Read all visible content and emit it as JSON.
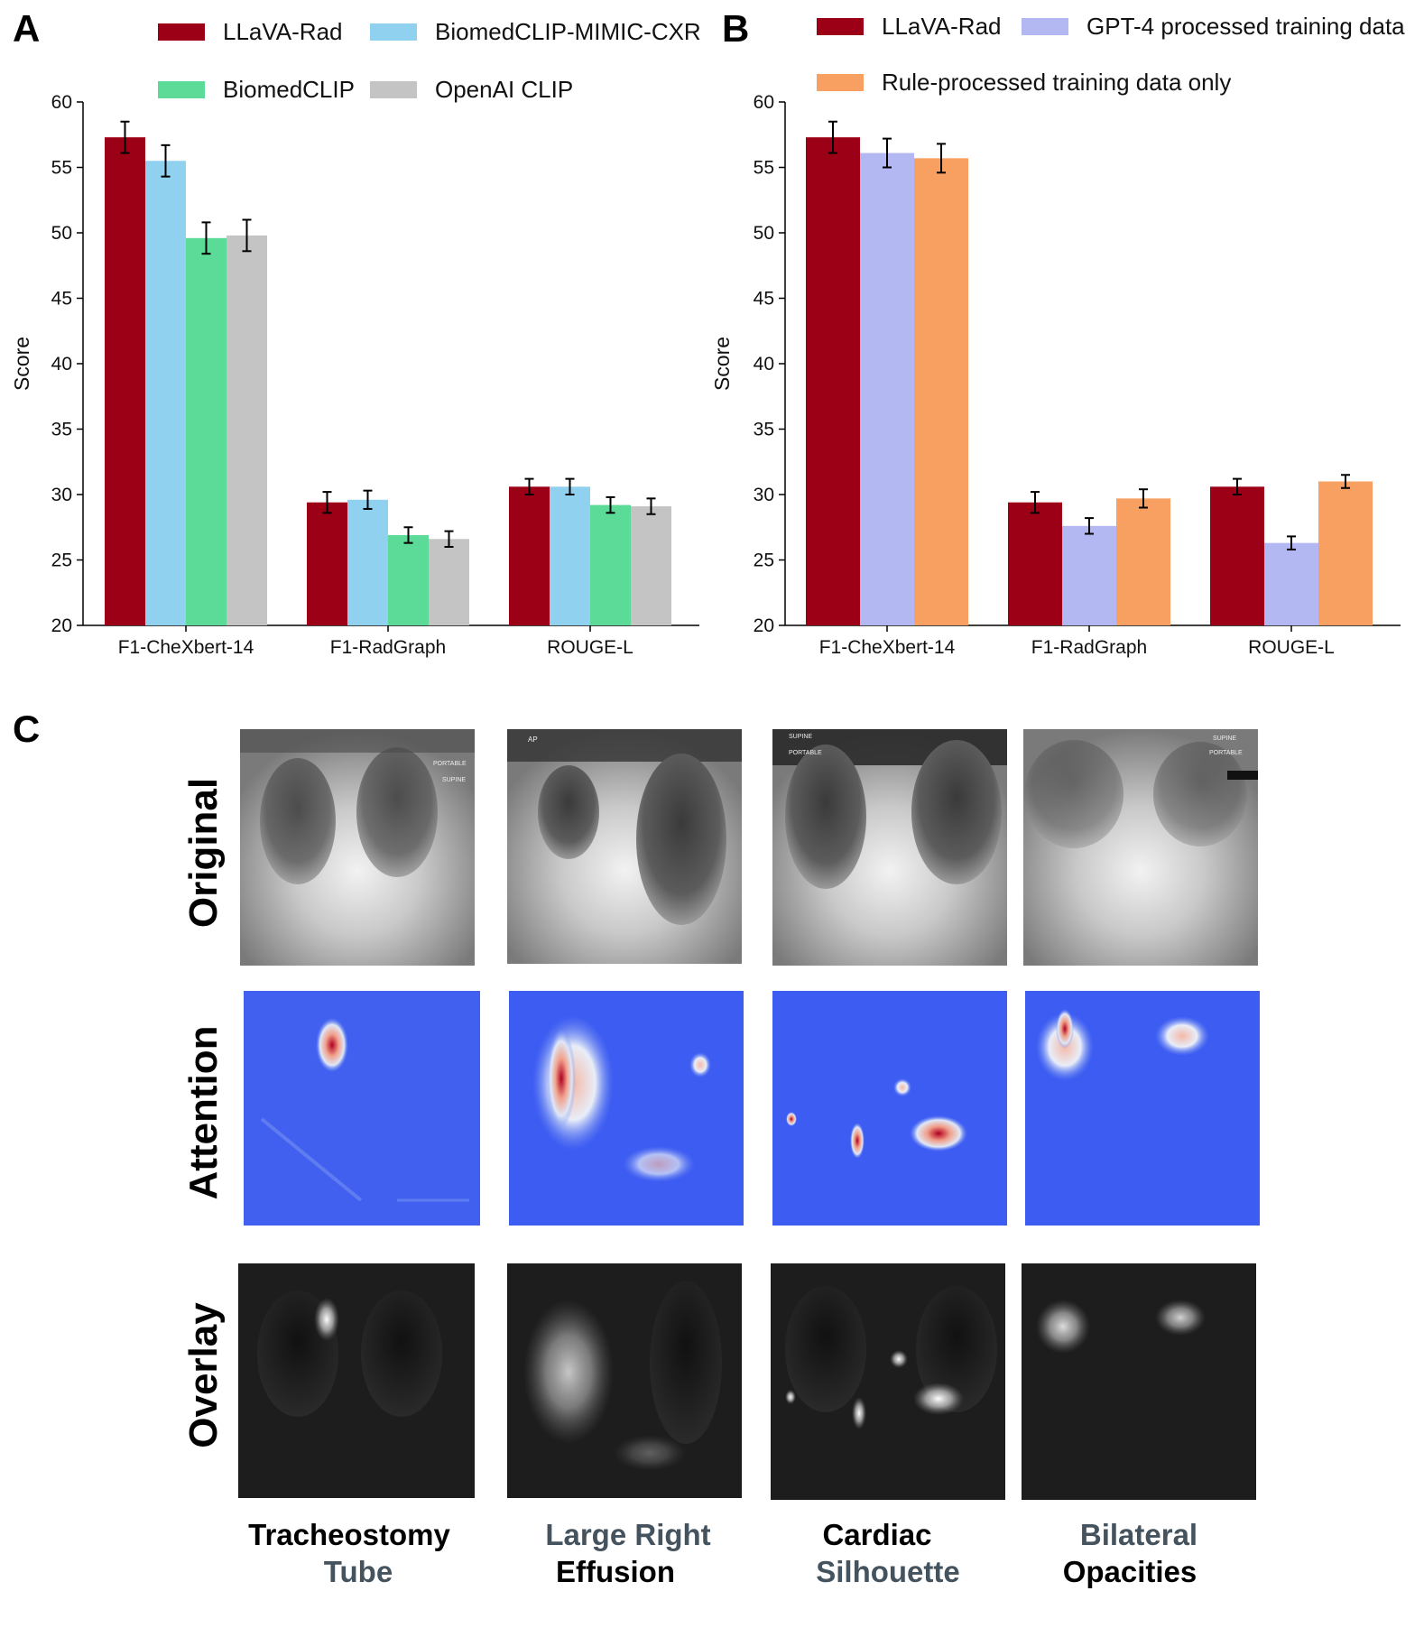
{
  "panels": {
    "a": "A",
    "b": "B",
    "c": "C"
  },
  "colors": {
    "llava": "#9b0016",
    "biomed_mimic": "#8fd1ef",
    "biomedclip": "#5cdb98",
    "openai": "#c4c4c4",
    "gpt4": "#b4b8f2",
    "rule": "#f7a062",
    "caption_gray": "#44535e"
  },
  "chart_data": [
    {
      "type": "bar",
      "categories": [
        "F1-CheXbert-14",
        "F1-RadGraph",
        "ROUGE-L"
      ],
      "ylabel": "Score",
      "ylim": [
        20,
        60
      ],
      "yticks": [
        20,
        25,
        30,
        35,
        40,
        45,
        50,
        55,
        60
      ],
      "grid": false,
      "legend_position": "top",
      "series": [
        {
          "name": "LLaVA-Rad",
          "color_key": "llava",
          "values": [
            57.3,
            29.4,
            30.6
          ],
          "err": [
            1.2,
            0.8,
            0.6
          ]
        },
        {
          "name": "BiomedCLIP-MIMIC-CXR",
          "color_key": "biomed_mimic",
          "values": [
            55.5,
            29.6,
            30.6
          ],
          "err": [
            1.2,
            0.7,
            0.6
          ]
        },
        {
          "name": "BiomedCLIP",
          "color_key": "biomedclip",
          "values": [
            49.6,
            26.9,
            29.2
          ],
          "err": [
            1.2,
            0.6,
            0.6
          ]
        },
        {
          "name": "OpenAI CLIP",
          "color_key": "openai",
          "values": [
            49.8,
            26.6,
            29.1
          ],
          "err": [
            1.2,
            0.6,
            0.6
          ]
        }
      ]
    },
    {
      "type": "bar",
      "categories": [
        "F1-CheXbert-14",
        "F1-RadGraph",
        "ROUGE-L"
      ],
      "ylabel": "Score",
      "ylim": [
        20,
        60
      ],
      "yticks": [
        20,
        25,
        30,
        35,
        40,
        45,
        50,
        55,
        60
      ],
      "grid": false,
      "legend_position": "top",
      "series": [
        {
          "name": "LLaVA-Rad",
          "color_key": "llava",
          "values": [
            57.3,
            29.4,
            30.6
          ],
          "err": [
            1.2,
            0.8,
            0.6
          ]
        },
        {
          "name": "GPT-4 processed training data",
          "color_key": "gpt4",
          "values": [
            56.1,
            27.6,
            26.3
          ],
          "err": [
            1.1,
            0.6,
            0.5
          ]
        },
        {
          "name": "Rule-processed training data only",
          "color_key": "rule",
          "values": [
            55.7,
            29.7,
            31.0
          ],
          "err": [
            1.1,
            0.7,
            0.5
          ]
        }
      ]
    }
  ],
  "panel_c": {
    "rows": [
      "Original",
      "Attention",
      "Overlay"
    ],
    "columns": [
      {
        "line1": "Tracheostomy",
        "line2": "Tube",
        "line1_gray": false
      },
      {
        "line1": "Large Right",
        "line2": "Effusion",
        "line1_gray": true
      },
      {
        "line1": "Cardiac",
        "line2": "Silhouette",
        "line1_gray": false
      },
      {
        "line1": "Bilateral",
        "line2": "Opacities",
        "line1_gray": true
      }
    ],
    "image_labels": [
      [
        "PORTABLE",
        "SUPINE"
      ],
      [
        "AP"
      ],
      [
        "SUPINE",
        "PORTABLE"
      ],
      [
        "SUPINE",
        "PORTABLE"
      ]
    ]
  }
}
